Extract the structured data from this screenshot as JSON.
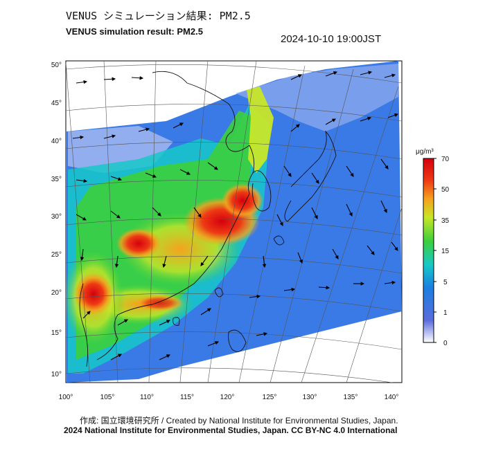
{
  "title_jp": "VENUS シミュレーション結果: PM2.5",
  "title_en": "VENUS simulation result: PM2.5",
  "timestamp": "2024-10-10 19:00JST",
  "credit_line1": "作成: 国立環境研究所 / Created by National Institute for Environmental Studies, Japan.",
  "credit_line2": "2024 National Institute for Environmental Studies, Japan. CC BY-NC 4.0 International",
  "axes": {
    "lon_labels": [
      "100°",
      "105°",
      "110°",
      "115°",
      "120°",
      "125°",
      "130°",
      "135°",
      "140°"
    ],
    "lat_labels": [
      "50°",
      "45°",
      "40°",
      "35°",
      "30°",
      "25°",
      "20°",
      "15°",
      "10°"
    ]
  },
  "colorbar": {
    "unit": "μg/m³",
    "ticks": [
      "70",
      "50",
      "35",
      "15",
      "5",
      "1",
      "0"
    ],
    "colors": [
      "#ffffff",
      "#5a6cdc",
      "#1a7fe0",
      "#16c8c8",
      "#3ccf3c",
      "#c8e628",
      "#f5a21e",
      "#ee3a14",
      "#d4000e"
    ]
  },
  "map": {
    "map_type": "PM2.5 concentration with wind vectors",
    "region": "East Asia"
  }
}
